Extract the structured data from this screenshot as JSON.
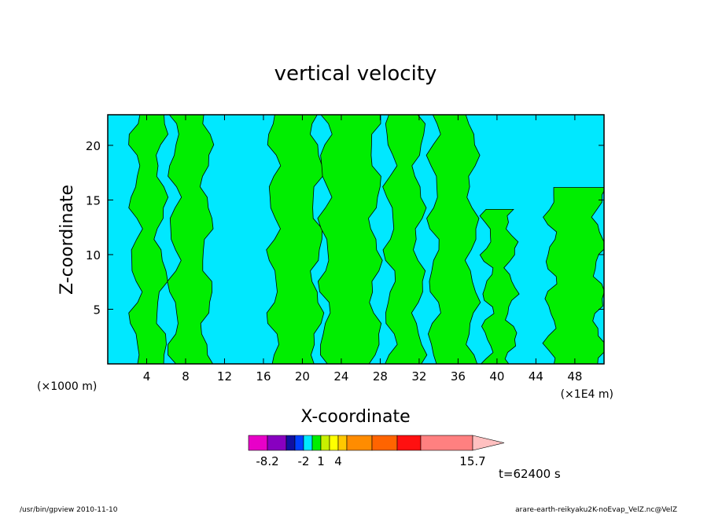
{
  "chart_data": {
    "type": "heatmap",
    "title": "vertical velocity",
    "xlabel": "X-coordinate",
    "ylabel": "Z-coordinate",
    "x_unit_left": "(×1000 m)",
    "x_unit_right": "(×1E4 m)",
    "xlim": [
      0,
      51
    ],
    "ylim": [
      0,
      22.8
    ],
    "x_ticks": [
      "4",
      "8",
      "12",
      "16",
      "20",
      "24",
      "28",
      "32",
      "36",
      "40",
      "44",
      "48"
    ],
    "x_tick_values": [
      4,
      8,
      12,
      16,
      20,
      24,
      28,
      32,
      36,
      40,
      44,
      48
    ],
    "y_ticks": [
      "5",
      "10",
      "15",
      "20"
    ],
    "y_tick_values": [
      5,
      10,
      15,
      20
    ],
    "background_color": "#00e8ff",
    "contour_fill_color": "#00ee00",
    "upward_columns": [
      {
        "x": [
          2.8,
          5.5
        ],
        "zmax": 22.8
      },
      {
        "x": [
          6.8,
          10.2
        ],
        "zmax": 22.8
      },
      {
        "x": [
          17.0,
          21.5
        ],
        "zmax": 22.8
      },
      {
        "x": [
          22.3,
          27.5
        ],
        "zmax": 22.8
      },
      {
        "x": [
          29.0,
          32.0
        ],
        "zmax": 22.8
      },
      {
        "x": [
          33.5,
          37.5
        ],
        "zmax": 22.8
      },
      {
        "x": [
          39.0,
          41.5
        ],
        "zmax": 14.0
      },
      {
        "x": [
          45.5,
          50.5
        ],
        "zmax": 16.0
      }
    ],
    "colorbar": {
      "colors": [
        "#e800c8",
        "#8800c0",
        "#1010a0",
        "#0040ff",
        "#00e8ff",
        "#00ee00",
        "#c8f000",
        "#ffff00",
        "#ffc800",
        "#ff8c00",
        "#ff6400",
        "#ff1010",
        "#ff8080",
        "#ffc0c0"
      ],
      "labels": [
        {
          "text": "-8.2",
          "index": 1
        },
        {
          "text": "-2",
          "index": 4
        },
        {
          "text": "1",
          "index": 6
        },
        {
          "text": "4",
          "index": 8
        },
        {
          "text": "15.7",
          "index": 13
        }
      ]
    },
    "time_label": "t=62400 s"
  },
  "footer": {
    "left": "/usr/bin/gpview   2010-11-10",
    "right": "arare-earth-reikyaku2K-noEvap_VelZ.nc@VelZ"
  }
}
